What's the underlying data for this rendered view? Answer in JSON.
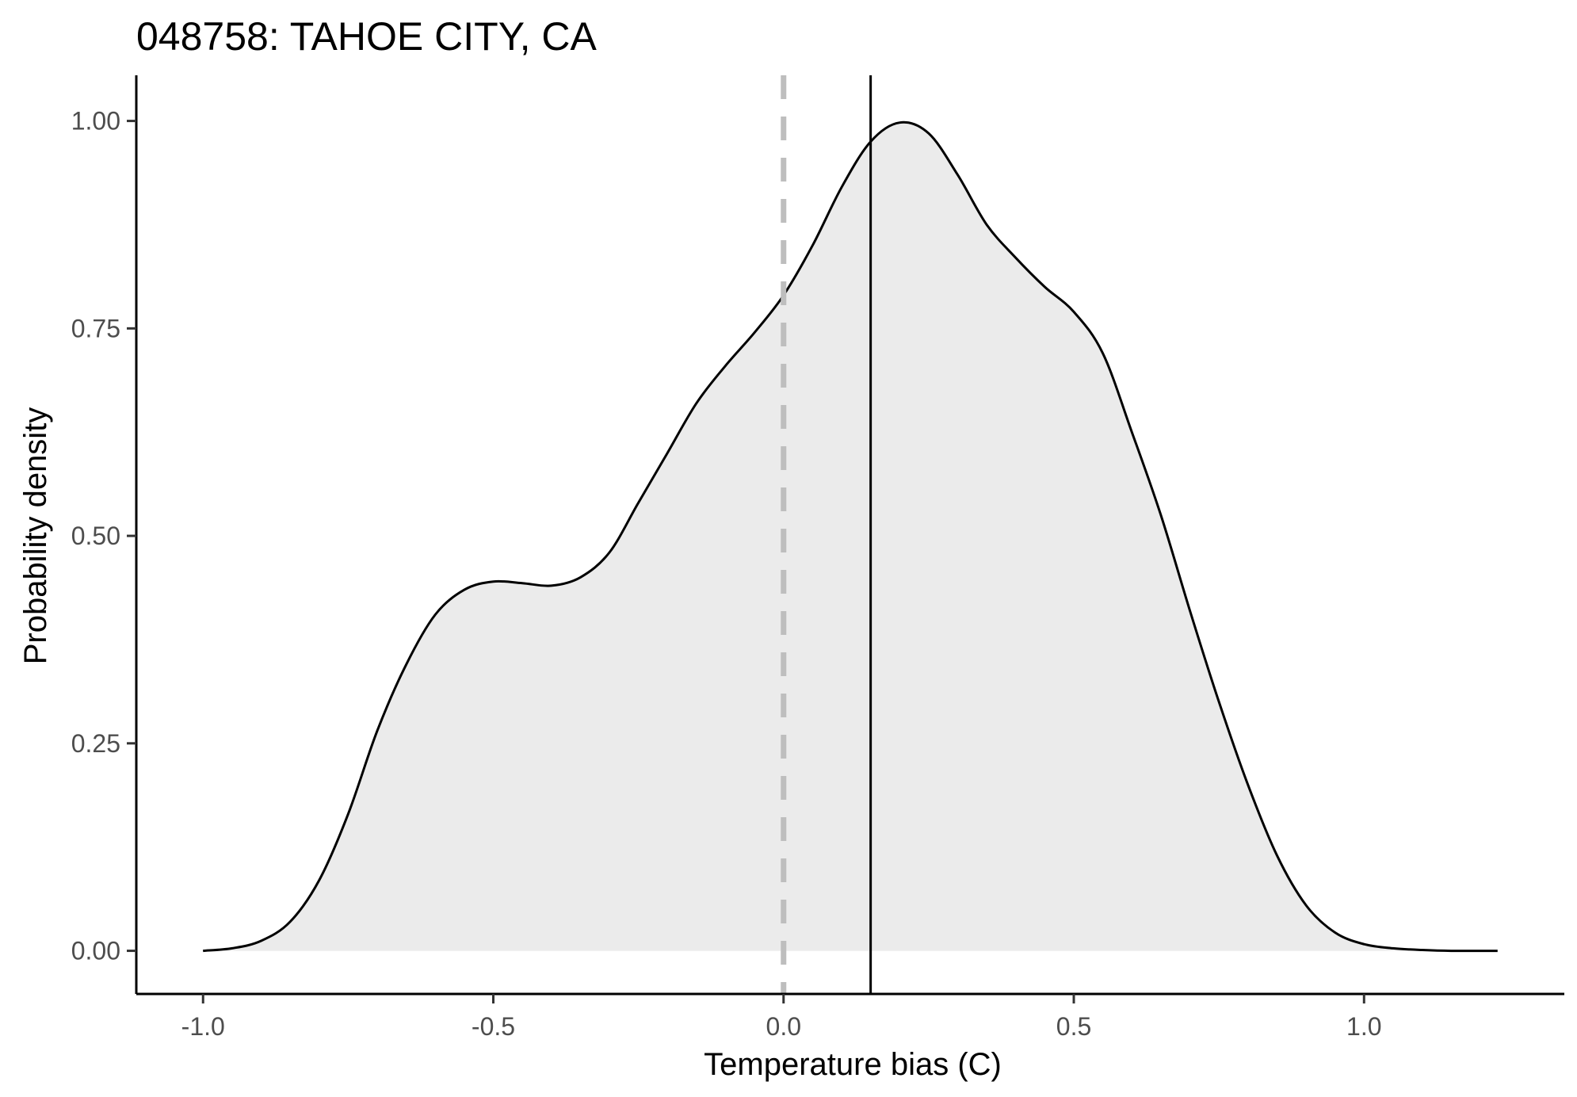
{
  "chart_data": {
    "type": "area",
    "title": "048758: TAHOE CITY, CA",
    "xlabel": "Temperature bias (C)",
    "ylabel": "Probability density",
    "xlim": [
      -1.115,
      1.345
    ],
    "ylim": [
      -0.052,
      1.055
    ],
    "x_ticks": [
      -1.0,
      -0.5,
      0.0,
      0.5,
      1.0
    ],
    "x_tick_labels": [
      "-1.0",
      "-0.5",
      "0.0",
      "0.5",
      "1.0"
    ],
    "y_ticks": [
      0.0,
      0.25,
      0.5,
      0.75,
      1.0
    ],
    "y_tick_labels": [
      "0.00",
      "0.25",
      "0.50",
      "0.75",
      "1.00"
    ],
    "grid": false,
    "legend": "none",
    "fill_color": "#ebebeb",
    "line_color": "#000000",
    "series": [
      {
        "x": [
          -1.0,
          -0.95,
          -0.9,
          -0.85,
          -0.8,
          -0.75,
          -0.7,
          -0.65,
          -0.6,
          -0.55,
          -0.5,
          -0.45,
          -0.4,
          -0.35,
          -0.3,
          -0.25,
          -0.2,
          -0.15,
          -0.1,
          -0.05,
          0.0,
          0.05,
          0.1,
          0.15,
          0.2,
          0.25,
          0.3,
          0.35,
          0.4,
          0.45,
          0.5,
          0.55,
          0.6,
          0.65,
          0.7,
          0.75,
          0.8,
          0.85,
          0.9,
          0.95,
          1.0,
          1.05,
          1.1,
          1.15,
          1.2,
          1.23
        ],
        "y": [
          0.0,
          0.003,
          0.012,
          0.035,
          0.085,
          0.165,
          0.265,
          0.345,
          0.405,
          0.435,
          0.445,
          0.443,
          0.44,
          0.45,
          0.48,
          0.54,
          0.6,
          0.66,
          0.705,
          0.745,
          0.79,
          0.85,
          0.92,
          0.975,
          0.998,
          0.985,
          0.935,
          0.875,
          0.835,
          0.8,
          0.77,
          0.72,
          0.625,
          0.525,
          0.41,
          0.3,
          0.2,
          0.115,
          0.055,
          0.022,
          0.008,
          0.003,
          0.001,
          0.0,
          0.0,
          0.0
        ]
      }
    ],
    "reference_lines": [
      {
        "x": 0.0,
        "style": "dashed",
        "color": "#bebebe"
      },
      {
        "x": 0.15,
        "style": "solid",
        "color": "#000000"
      }
    ]
  }
}
